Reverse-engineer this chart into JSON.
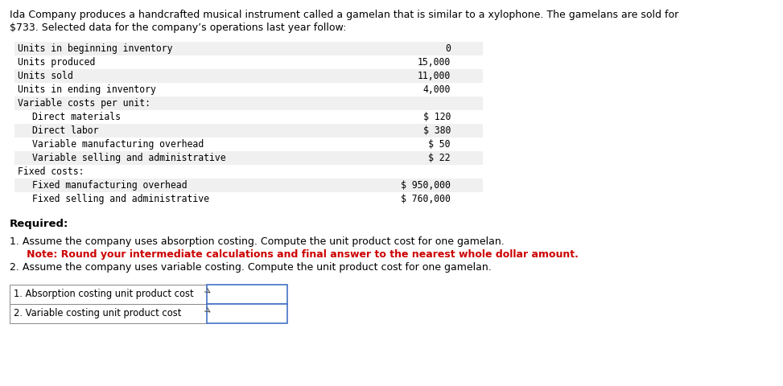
{
  "intro_line1": "Ida Company produces a handcrafted musical instrument called a gamelan that is similar to a xylophone. The gamelans are sold for",
  "intro_line2": "$733. Selected data for the company’s operations last year follow:",
  "table_rows": [
    {
      "label": "Units in beginning inventory",
      "value": "0",
      "indent": 0
    },
    {
      "label": "Units produced",
      "value": "15,000",
      "indent": 0
    },
    {
      "label": "Units sold",
      "value": "11,000",
      "indent": 0
    },
    {
      "label": "Units in ending inventory",
      "value": "4,000",
      "indent": 0
    },
    {
      "label": "Variable costs per unit:",
      "value": "",
      "indent": 0
    },
    {
      "label": "Direct materials",
      "value": "$ 120",
      "indent": 1
    },
    {
      "label": "Direct labor",
      "value": "$ 380",
      "indent": 1
    },
    {
      "label": "Variable manufacturing overhead",
      "value": "$ 50",
      "indent": 1
    },
    {
      "label": "Variable selling and administrative",
      "value": "$ 22",
      "indent": 1
    },
    {
      "label": "Fixed costs:",
      "value": "",
      "indent": 0
    },
    {
      "label": "Fixed manufacturing overhead",
      "value": "$ 950,000",
      "indent": 1
    },
    {
      "label": "Fixed selling and administrative",
      "value": "$ 760,000",
      "indent": 1
    }
  ],
  "required_label": "Required:",
  "inst1": "1. Assume the company uses absorption costing. Compute the unit product cost for one gamelan.",
  "inst_note": "   Note: Round your intermediate calculations and final answer to the nearest whole dollar amount.",
  "inst2": "2. Assume the company uses variable costing. Compute the unit product cost for one gamelan.",
  "note_color": "#cc0000",
  "answer_rows": [
    "1. Absorption costing unit product cost",
    "2. Variable costing unit product cost"
  ],
  "table_row_colors": [
    "#f0f0f0",
    "#e8e8e8"
  ],
  "answer_border_color": "#4472c4",
  "bg_color": "#ffffff"
}
